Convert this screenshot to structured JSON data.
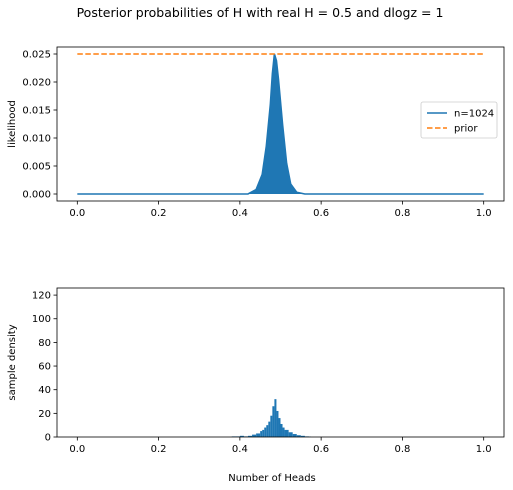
{
  "figure": {
    "suptitle": "Posterior probabilities of H with real H = 0.5 and dlogz = 1",
    "xlabel": "Number of Heads"
  },
  "colors": {
    "blue": "#1f77b4",
    "orange": "#ff7f0e",
    "axis": "#000000"
  },
  "chart_data": [
    {
      "type": "line",
      "ylabel": "likelihood",
      "xlim": [
        -0.05,
        1.05
      ],
      "ylim": [
        -0.00125,
        0.02625
      ],
      "xticks": [
        0.0,
        0.2,
        0.4,
        0.6,
        0.8,
        1.0
      ],
      "xtick_labels": [
        "0.0",
        "0.2",
        "0.4",
        "0.6",
        "0.8",
        "1.0"
      ],
      "yticks": [
        0.0,
        0.005,
        0.01,
        0.015,
        0.02,
        0.025
      ],
      "ytick_labels": [
        "0.000",
        "0.005",
        "0.010",
        "0.015",
        "0.020",
        "0.025"
      ],
      "grid": false,
      "legend": "center-right",
      "series": [
        {
          "name": "n=1024",
          "style": "solid",
          "color": "#1f77b4",
          "x": [
            0.0,
            0.42,
            0.44,
            0.455,
            0.465,
            0.475,
            0.48,
            0.485,
            0.49,
            0.495,
            0.505,
            0.515,
            0.525,
            0.54,
            0.56,
            1.0
          ],
          "y": [
            0.0,
            0.0,
            0.0008,
            0.0035,
            0.0085,
            0.016,
            0.0215,
            0.025,
            0.0238,
            0.0205,
            0.0125,
            0.0055,
            0.0018,
            0.0003,
            0.0,
            0.0
          ]
        },
        {
          "name": "prior",
          "style": "dashed",
          "color": "#ff7f0e",
          "x": [
            0.0,
            1.0
          ],
          "y": [
            0.025,
            0.025
          ]
        }
      ]
    },
    {
      "type": "bar",
      "ylabel": "sample density",
      "xlim": [
        -0.05,
        1.05
      ],
      "ylim": [
        0,
        126
      ],
      "xticks": [
        0.0,
        0.2,
        0.4,
        0.6,
        0.8,
        1.0
      ],
      "xtick_labels": [
        "0.0",
        "0.2",
        "0.4",
        "0.6",
        "0.8",
        "1.0"
      ],
      "yticks": [
        0,
        20,
        40,
        60,
        80,
        100,
        120
      ],
      "ytick_labels": [
        "0",
        "20",
        "40",
        "60",
        "80",
        "100",
        "120"
      ],
      "grid": false,
      "color": "#1f77b4",
      "bins_x": [
        0.38,
        0.39,
        0.4,
        0.41,
        0.42,
        0.43,
        0.44,
        0.45,
        0.455,
        0.46,
        0.465,
        0.47,
        0.475,
        0.48,
        0.485,
        0.49,
        0.495,
        0.5,
        0.505,
        0.51,
        0.52,
        0.53,
        0.54,
        0.55,
        0.56,
        0.57
      ],
      "values": [
        0.5,
        0.5,
        1,
        0.5,
        1,
        2,
        3,
        5,
        6,
        8,
        10,
        13,
        18,
        26,
        32,
        22,
        16,
        11,
        8,
        6,
        4,
        2.5,
        1.5,
        1,
        0.5,
        0.3
      ]
    }
  ]
}
